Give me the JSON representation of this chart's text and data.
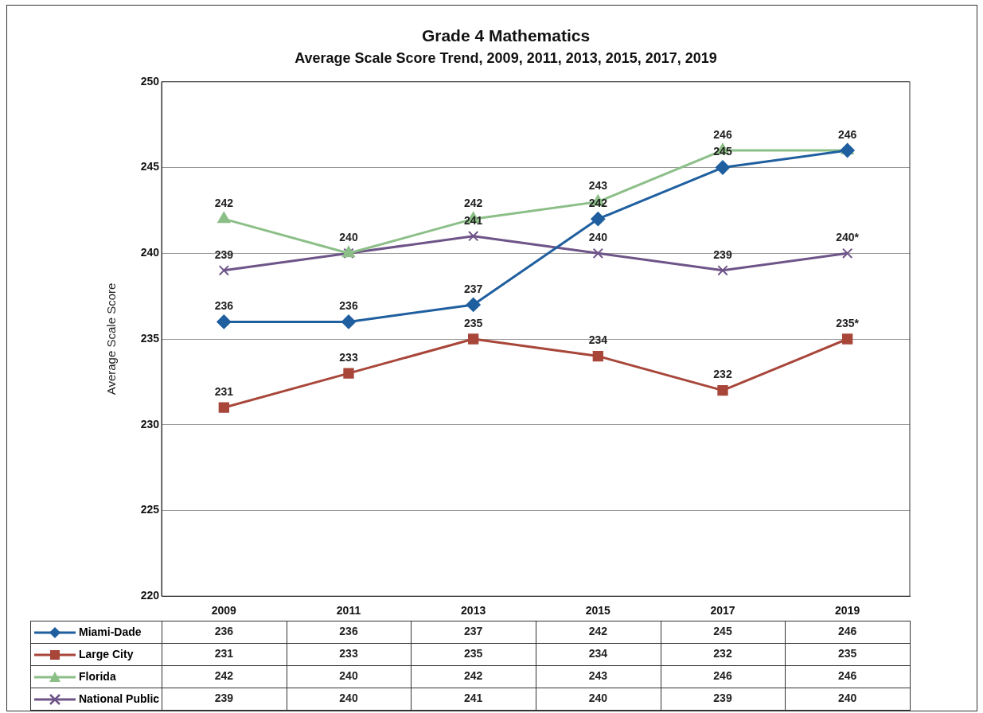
{
  "chart_data": {
    "type": "line",
    "title": "Grade 4 Mathematics",
    "subtitle": "Average Scale Score Trend, 2009, 2011, 2013, 2015, 2017, 2019",
    "ylabel": "Average Scale Score",
    "categories": [
      "2009",
      "2011",
      "2013",
      "2015",
      "2017",
      "2019"
    ],
    "series": [
      {
        "name": "Miami-Dade",
        "color": "#1f5f9f",
        "marker": "diamond",
        "values": [
          236,
          236,
          237,
          242,
          245,
          246
        ]
      },
      {
        "name": "Large City",
        "color": "#a8463a",
        "marker": "square",
        "values": [
          231,
          233,
          235,
          234,
          232,
          235
        ]
      },
      {
        "name": "Florida",
        "color": "#8cbf88",
        "marker": "triangle",
        "values": [
          242,
          240,
          242,
          243,
          246,
          246
        ]
      },
      {
        "name": "National Public",
        "color": "#6e5488",
        "marker": "cross",
        "values": [
          239,
          240,
          241,
          240,
          239,
          240
        ]
      }
    ],
    "annotations": [
      {
        "text": "236",
        "x": "2009",
        "y": 236
      },
      {
        "text": "236",
        "x": "2011",
        "y": 236
      },
      {
        "text": "237",
        "x": "2013",
        "y": 237
      },
      {
        "text": "242",
        "x": "2015",
        "y": 242
      },
      {
        "text": "245",
        "x": "2017",
        "y": 245
      },
      {
        "text": "231",
        "x": "2009",
        "y": 231
      },
      {
        "text": "233",
        "x": "2011",
        "y": 233
      },
      {
        "text": "235",
        "x": "2013",
        "y": 235
      },
      {
        "text": "234",
        "x": "2015",
        "y": 234
      },
      {
        "text": "232",
        "x": "2017",
        "y": 232
      },
      {
        "text": "235*",
        "x": "2019",
        "y": 235
      },
      {
        "text": "242",
        "x": "2009",
        "y": 242
      },
      {
        "text": "240",
        "x": "2011",
        "y": 240
      },
      {
        "text": "242",
        "x": "2013",
        "y": 242
      },
      {
        "text": "243",
        "x": "2015",
        "y": 243
      },
      {
        "text": "246",
        "x": "2017",
        "y": 246
      },
      {
        "text": "246",
        "x": "2019",
        "y": 246
      },
      {
        "text": "239",
        "x": "2009",
        "y": 239
      },
      {
        "text": "241",
        "x": "2013",
        "y": 241
      },
      {
        "text": "240",
        "x": "2015",
        "y": 240
      },
      {
        "text": "239",
        "x": "2017",
        "y": 239
      },
      {
        "text": "240*",
        "x": "2019",
        "y": 240
      }
    ],
    "ylim": [
      220,
      250
    ],
    "yticks": [
      220,
      225,
      230,
      235,
      240,
      245,
      250
    ],
    "grid": "y",
    "legend": "bottom",
    "data_labels": true,
    "line_style": "solid"
  }
}
